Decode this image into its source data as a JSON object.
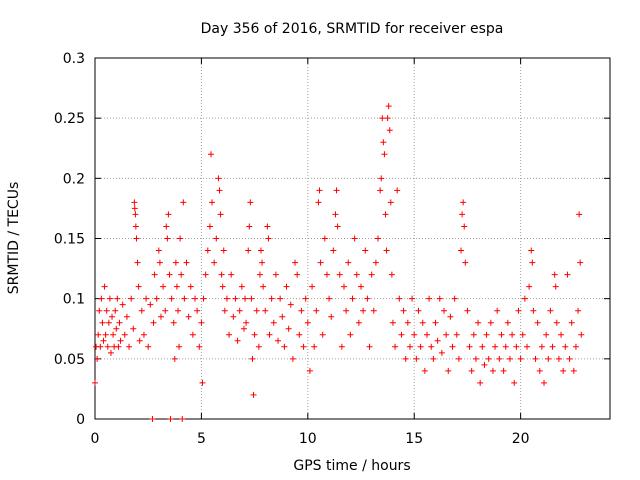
{
  "chart_data": {
    "type": "scatter",
    "title": "Day 356 of 2016, SRMTID for receiver espa",
    "xlabel": "GPS time / hours",
    "ylabel": "SRMTID / TECUs",
    "xlim": [
      0,
      24.2
    ],
    "ylim": [
      0,
      0.3
    ],
    "x_ticks": [
      0,
      5,
      10,
      15,
      20
    ],
    "x_tick_labels": [
      "0",
      "5",
      "10",
      "15",
      "20"
    ],
    "y_ticks": [
      0,
      0.05,
      0.1,
      0.15,
      0.2,
      0.25,
      0.3
    ],
    "y_tick_labels": [
      "0",
      "0.05",
      "0.1",
      "0.15",
      "0.2",
      "0.25",
      "0.3"
    ],
    "grid": true,
    "marker": "+",
    "marker_color": "#ff0000",
    "series": [
      {
        "name": "SRMTID",
        "points": [
          [
            0.0,
            0.03
          ],
          [
            0.05,
            0.06
          ],
          [
            0.1,
            0.05
          ],
          [
            0.15,
            0.07
          ],
          [
            0.2,
            0.09
          ],
          [
            0.25,
            0.06
          ],
          [
            0.3,
            0.1
          ],
          [
            0.35,
            0.08
          ],
          [
            0.4,
            0.065
          ],
          [
            0.45,
            0.11
          ],
          [
            0.5,
            0.07
          ],
          [
            0.55,
            0.09
          ],
          [
            0.6,
            0.06
          ],
          [
            0.65,
            0.08
          ],
          [
            0.7,
            0.1
          ],
          [
            0.75,
            0.055
          ],
          [
            0.8,
            0.085
          ],
          [
            0.85,
            0.07
          ],
          [
            0.9,
            0.06
          ],
          [
            0.95,
            0.09
          ],
          [
            1.0,
            0.075
          ],
          [
            1.05,
            0.1
          ],
          [
            1.1,
            0.06
          ],
          [
            1.15,
            0.08
          ],
          [
            1.2,
            0.065
          ],
          [
            1.3,
            0.095
          ],
          [
            1.4,
            0.07
          ],
          [
            1.5,
            0.085
          ],
          [
            1.6,
            0.06
          ],
          [
            1.7,
            0.1
          ],
          [
            1.8,
            0.075
          ],
          [
            1.85,
            0.18
          ],
          [
            1.87,
            0.175
          ],
          [
            1.9,
            0.17
          ],
          [
            1.92,
            0.16
          ],
          [
            1.95,
            0.15
          ],
          [
            2.0,
            0.13
          ],
          [
            2.05,
            0.11
          ],
          [
            2.1,
            0.065
          ],
          [
            2.2,
            0.09
          ],
          [
            2.3,
            0.07
          ],
          [
            2.4,
            0.1
          ],
          [
            2.5,
            0.06
          ],
          [
            2.6,
            0.095
          ],
          [
            2.7,
            0.0
          ],
          [
            2.75,
            0.08
          ],
          [
            2.8,
            0.12
          ],
          [
            2.9,
            0.1
          ],
          [
            3.0,
            0.14
          ],
          [
            3.05,
            0.13
          ],
          [
            3.1,
            0.085
          ],
          [
            3.2,
            0.11
          ],
          [
            3.3,
            0.09
          ],
          [
            3.35,
            0.16
          ],
          [
            3.4,
            0.15
          ],
          [
            3.45,
            0.17
          ],
          [
            3.5,
            0.12
          ],
          [
            3.55,
            0.0
          ],
          [
            3.6,
            0.1
          ],
          [
            3.7,
            0.08
          ],
          [
            3.75,
            0.05
          ],
          [
            3.8,
            0.13
          ],
          [
            3.85,
            0.11
          ],
          [
            3.9,
            0.09
          ],
          [
            3.95,
            0.06
          ],
          [
            4.0,
            0.15
          ],
          [
            4.05,
            0.12
          ],
          [
            4.1,
            0.0
          ],
          [
            4.15,
            0.18
          ],
          [
            4.2,
            0.1
          ],
          [
            4.3,
            0.13
          ],
          [
            4.4,
            0.085
          ],
          [
            4.5,
            0.11
          ],
          [
            4.6,
            0.07
          ],
          [
            4.7,
            0.1
          ],
          [
            4.8,
            0.09
          ],
          [
            4.9,
            0.06
          ],
          [
            5.0,
            0.08
          ],
          [
            5.05,
            0.03
          ],
          [
            5.1,
            0.1
          ],
          [
            5.2,
            0.12
          ],
          [
            5.3,
            0.14
          ],
          [
            5.4,
            0.16
          ],
          [
            5.45,
            0.22
          ],
          [
            5.5,
            0.18
          ],
          [
            5.6,
            0.13
          ],
          [
            5.7,
            0.15
          ],
          [
            5.8,
            0.2
          ],
          [
            5.85,
            0.19
          ],
          [
            5.9,
            0.17
          ],
          [
            5.95,
            0.12
          ],
          [
            6.0,
            0.11
          ],
          [
            6.05,
            0.14
          ],
          [
            6.1,
            0.09
          ],
          [
            6.2,
            0.1
          ],
          [
            6.3,
            0.07
          ],
          [
            6.4,
            0.12
          ],
          [
            6.5,
            0.085
          ],
          [
            6.6,
            0.1
          ],
          [
            6.7,
            0.065
          ],
          [
            6.8,
            0.09
          ],
          [
            6.9,
            0.11
          ],
          [
            7.0,
            0.075
          ],
          [
            7.05,
            0.1
          ],
          [
            7.1,
            0.08
          ],
          [
            7.2,
            0.14
          ],
          [
            7.25,
            0.16
          ],
          [
            7.3,
            0.18
          ],
          [
            7.35,
            0.1
          ],
          [
            7.4,
            0.05
          ],
          [
            7.45,
            0.02
          ],
          [
            7.5,
            0.07
          ],
          [
            7.6,
            0.09
          ],
          [
            7.7,
            0.06
          ],
          [
            7.75,
            0.12
          ],
          [
            7.8,
            0.14
          ],
          [
            7.85,
            0.13
          ],
          [
            7.9,
            0.11
          ],
          [
            8.0,
            0.09
          ],
          [
            8.1,
            0.16
          ],
          [
            8.15,
            0.15
          ],
          [
            8.2,
            0.07
          ],
          [
            8.3,
            0.1
          ],
          [
            8.4,
            0.08
          ],
          [
            8.5,
            0.12
          ],
          [
            8.6,
            0.065
          ],
          [
            8.7,
            0.1
          ],
          [
            8.8,
            0.085
          ],
          [
            8.9,
            0.06
          ],
          [
            9.0,
            0.11
          ],
          [
            9.1,
            0.075
          ],
          [
            9.2,
            0.095
          ],
          [
            9.3,
            0.05
          ],
          [
            9.4,
            0.13
          ],
          [
            9.5,
            0.12
          ],
          [
            9.6,
            0.07
          ],
          [
            9.7,
            0.09
          ],
          [
            9.8,
            0.06
          ],
          [
            9.9,
            0.1
          ],
          [
            10.0,
            0.08
          ],
          [
            10.1,
            0.04
          ],
          [
            10.2,
            0.11
          ],
          [
            10.3,
            0.06
          ],
          [
            10.4,
            0.09
          ],
          [
            10.5,
            0.18
          ],
          [
            10.55,
            0.19
          ],
          [
            10.6,
            0.13
          ],
          [
            10.7,
            0.07
          ],
          [
            10.8,
            0.15
          ],
          [
            10.9,
            0.12
          ],
          [
            11.0,
            0.1
          ],
          [
            11.1,
            0.085
          ],
          [
            11.2,
            0.14
          ],
          [
            11.3,
            0.17
          ],
          [
            11.35,
            0.19
          ],
          [
            11.4,
            0.16
          ],
          [
            11.5,
            0.12
          ],
          [
            11.6,
            0.06
          ],
          [
            11.7,
            0.11
          ],
          [
            11.8,
            0.09
          ],
          [
            11.9,
            0.13
          ],
          [
            12.0,
            0.07
          ],
          [
            12.1,
            0.1
          ],
          [
            12.2,
            0.15
          ],
          [
            12.3,
            0.12
          ],
          [
            12.4,
            0.08
          ],
          [
            12.5,
            0.11
          ],
          [
            12.6,
            0.09
          ],
          [
            12.7,
            0.14
          ],
          [
            12.8,
            0.1
          ],
          [
            12.9,
            0.06
          ],
          [
            13.0,
            0.12
          ],
          [
            13.1,
            0.09
          ],
          [
            13.2,
            0.13
          ],
          [
            13.3,
            0.15
          ],
          [
            13.4,
            0.19
          ],
          [
            13.45,
            0.2
          ],
          [
            13.5,
            0.25
          ],
          [
            13.55,
            0.23
          ],
          [
            13.6,
            0.22
          ],
          [
            13.65,
            0.17
          ],
          [
            13.7,
            0.14
          ],
          [
            13.75,
            0.25
          ],
          [
            13.8,
            0.26
          ],
          [
            13.85,
            0.24
          ],
          [
            13.9,
            0.18
          ],
          [
            13.95,
            0.12
          ],
          [
            14.0,
            0.08
          ],
          [
            14.1,
            0.06
          ],
          [
            14.2,
            0.19
          ],
          [
            14.3,
            0.1
          ],
          [
            14.4,
            0.07
          ],
          [
            14.5,
            0.09
          ],
          [
            14.6,
            0.05
          ],
          [
            14.7,
            0.08
          ],
          [
            14.8,
            0.06
          ],
          [
            14.9,
            0.1
          ],
          [
            15.0,
            0.07
          ],
          [
            15.1,
            0.05
          ],
          [
            15.2,
            0.09
          ],
          [
            15.3,
            0.06
          ],
          [
            15.4,
            0.08
          ],
          [
            15.5,
            0.04
          ],
          [
            15.6,
            0.07
          ],
          [
            15.7,
            0.1
          ],
          [
            15.8,
            0.06
          ],
          [
            15.9,
            0.05
          ],
          [
            16.0,
            0.08
          ],
          [
            16.1,
            0.065
          ],
          [
            16.2,
            0.1
          ],
          [
            16.3,
            0.055
          ],
          [
            16.4,
            0.09
          ],
          [
            16.5,
            0.07
          ],
          [
            16.6,
            0.04
          ],
          [
            16.7,
            0.085
          ],
          [
            16.8,
            0.06
          ],
          [
            16.9,
            0.1
          ],
          [
            17.0,
            0.07
          ],
          [
            17.1,
            0.05
          ],
          [
            17.2,
            0.14
          ],
          [
            17.25,
            0.17
          ],
          [
            17.3,
            0.18
          ],
          [
            17.35,
            0.16
          ],
          [
            17.4,
            0.13
          ],
          [
            17.5,
            0.09
          ],
          [
            17.6,
            0.06
          ],
          [
            17.7,
            0.04
          ],
          [
            17.8,
            0.07
          ],
          [
            17.9,
            0.05
          ],
          [
            18.0,
            0.08
          ],
          [
            18.1,
            0.03
          ],
          [
            18.2,
            0.06
          ],
          [
            18.3,
            0.045
          ],
          [
            18.4,
            0.07
          ],
          [
            18.5,
            0.05
          ],
          [
            18.6,
            0.08
          ],
          [
            18.7,
            0.04
          ],
          [
            18.8,
            0.06
          ],
          [
            18.9,
            0.09
          ],
          [
            19.0,
            0.05
          ],
          [
            19.1,
            0.07
          ],
          [
            19.2,
            0.04
          ],
          [
            19.3,
            0.06
          ],
          [
            19.4,
            0.08
          ],
          [
            19.5,
            0.05
          ],
          [
            19.6,
            0.07
          ],
          [
            19.7,
            0.03
          ],
          [
            19.8,
            0.06
          ],
          [
            19.9,
            0.09
          ],
          [
            20.0,
            0.05
          ],
          [
            20.1,
            0.07
          ],
          [
            20.2,
            0.1
          ],
          [
            20.3,
            0.06
          ],
          [
            20.4,
            0.11
          ],
          [
            20.5,
            0.14
          ],
          [
            20.55,
            0.13
          ],
          [
            20.6,
            0.09
          ],
          [
            20.7,
            0.05
          ],
          [
            20.8,
            0.08
          ],
          [
            20.9,
            0.04
          ],
          [
            21.0,
            0.06
          ],
          [
            21.1,
            0.03
          ],
          [
            21.2,
            0.07
          ],
          [
            21.3,
            0.05
          ],
          [
            21.4,
            0.09
          ],
          [
            21.5,
            0.06
          ],
          [
            21.6,
            0.12
          ],
          [
            21.65,
            0.11
          ],
          [
            21.7,
            0.08
          ],
          [
            21.8,
            0.05
          ],
          [
            21.9,
            0.07
          ],
          [
            22.0,
            0.04
          ],
          [
            22.1,
            0.06
          ],
          [
            22.2,
            0.12
          ],
          [
            22.3,
            0.05
          ],
          [
            22.4,
            0.08
          ],
          [
            22.5,
            0.04
          ],
          [
            22.6,
            0.06
          ],
          [
            22.7,
            0.09
          ],
          [
            22.75,
            0.17
          ],
          [
            22.8,
            0.13
          ],
          [
            22.85,
            0.07
          ]
        ]
      }
    ]
  }
}
